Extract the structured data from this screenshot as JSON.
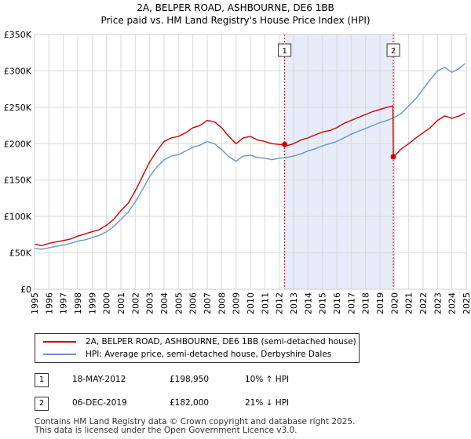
{
  "chart_data": {
    "type": "line",
    "title": "2A, BELPER ROAD, ASHBOURNE, DE6 1BB",
    "subtitle": "Price paid vs. HM Land Registry's House Price Index (HPI)",
    "xlabel": "",
    "ylabel": "",
    "xlim": [
      1995,
      2025
    ],
    "ylim": [
      0,
      350000
    ],
    "x_ticks": [
      "1995",
      "1996",
      "1997",
      "1998",
      "1999",
      "2000",
      "2001",
      "2002",
      "2003",
      "2004",
      "2005",
      "2006",
      "2007",
      "2008",
      "2009",
      "2010",
      "2011",
      "2012",
      "2013",
      "2014",
      "2015",
      "2016",
      "2017",
      "2018",
      "2019",
      "2020",
      "2021",
      "2022",
      "2023",
      "2024",
      "2025"
    ],
    "y_ticks": [
      {
        "value": 0,
        "label": "£0"
      },
      {
        "value": 50000,
        "label": "£50K"
      },
      {
        "value": 100000,
        "label": "£100K"
      },
      {
        "value": 150000,
        "label": "£150K"
      },
      {
        "value": 200000,
        "label": "£200K"
      },
      {
        "value": 250000,
        "label": "£250K"
      },
      {
        "value": 300000,
        "label": "£300K"
      },
      {
        "value": 350000,
        "label": "£350K"
      }
    ],
    "grid": true,
    "shaded_period": [
      2012.38,
      2019.93
    ],
    "series": [
      {
        "name": "2A, BELPER ROAD, ASHBOURNE, DE6 1BB (semi-detached house)",
        "color": "#cc0000",
        "x": [
          1995.0,
          1995.5,
          1996.0,
          1996.5,
          1997.0,
          1997.5,
          1998.0,
          1998.5,
          1999.0,
          1999.5,
          2000.0,
          2000.5,
          2001.0,
          2001.5,
          2002.0,
          2002.5,
          2003.0,
          2003.5,
          2004.0,
          2004.5,
          2005.0,
          2005.5,
          2006.0,
          2006.5,
          2007.0,
          2007.5,
          2008.0,
          2008.5,
          2009.0,
          2009.5,
          2010.0,
          2010.5,
          2011.0,
          2011.5,
          2012.0,
          2012.38,
          2012.5,
          2013.0,
          2013.5,
          2014.0,
          2014.5,
          2015.0,
          2015.5,
          2016.0,
          2016.5,
          2017.0,
          2017.5,
          2018.0,
          2018.5,
          2019.0,
          2019.5,
          2019.9,
          2019.93,
          2020.2,
          2020.5,
          2021.0,
          2021.5,
          2022.0,
          2022.5,
          2023.0,
          2023.5,
          2024.0,
          2024.5,
          2024.9
        ],
        "y": [
          62000,
          60000,
          63000,
          65000,
          67000,
          69000,
          73000,
          76000,
          79000,
          82000,
          88000,
          96000,
          108000,
          118000,
          135000,
          155000,
          175000,
          190000,
          203000,
          208000,
          210000,
          215000,
          222000,
          225000,
          232000,
          230000,
          222000,
          210000,
          200000,
          208000,
          210000,
          205000,
          203000,
          200000,
          199000,
          198950,
          197000,
          200000,
          205000,
          208000,
          212000,
          216000,
          218000,
          222000,
          228000,
          232000,
          236000,
          240000,
          244000,
          247000,
          250000,
          252000,
          182000,
          187000,
          193000,
          200000,
          208000,
          215000,
          222000,
          232000,
          238000,
          235000,
          238000,
          242000
        ]
      },
      {
        "name": "HPI: Average price, semi-detached house, Derbyshire Dales",
        "color": "#6a96c8",
        "x": [
          1995.0,
          1995.5,
          1996.0,
          1996.5,
          1997.0,
          1997.5,
          1998.0,
          1998.5,
          1999.0,
          1999.5,
          2000.0,
          2000.5,
          2001.0,
          2001.5,
          2002.0,
          2002.5,
          2003.0,
          2003.5,
          2004.0,
          2004.5,
          2005.0,
          2005.5,
          2006.0,
          2006.5,
          2007.0,
          2007.5,
          2008.0,
          2008.5,
          2009.0,
          2009.5,
          2010.0,
          2010.5,
          2011.0,
          2011.5,
          2012.0,
          2012.5,
          2013.0,
          2013.5,
          2014.0,
          2014.5,
          2015.0,
          2015.5,
          2016.0,
          2016.5,
          2017.0,
          2017.5,
          2018.0,
          2018.5,
          2019.0,
          2019.5,
          2020.0,
          2020.5,
          2021.0,
          2021.5,
          2022.0,
          2022.5,
          2023.0,
          2023.5,
          2024.0,
          2024.5,
          2024.9
        ],
        "y": [
          56000,
          55000,
          57000,
          59000,
          61000,
          63000,
          66000,
          68000,
          71000,
          74000,
          79000,
          86000,
          96000,
          106000,
          120000,
          137000,
          155000,
          168000,
          178000,
          183000,
          185000,
          190000,
          195000,
          198000,
          203000,
          200000,
          192000,
          182000,
          176000,
          183000,
          184000,
          181000,
          180000,
          178000,
          180000,
          181000,
          183000,
          186000,
          190000,
          193000,
          197000,
          200000,
          203000,
          208000,
          213000,
          217000,
          221000,
          225000,
          229000,
          232000,
          236000,
          242000,
          252000,
          262000,
          275000,
          288000,
          300000,
          305000,
          298000,
          303000,
          310000
        ]
      }
    ],
    "annotations": [
      {
        "id": "1",
        "x": 2012.38,
        "y": 198950
      },
      {
        "id": "2",
        "x": 2019.93,
        "y": 182000
      }
    ]
  },
  "legend": {
    "property_label": "2A, BELPER ROAD, ASHBOURNE, DE6 1BB (semi-detached house)",
    "hpi_label": "HPI: Average price, semi-detached house, Derbyshire Dales"
  },
  "transactions": [
    {
      "id": "1",
      "date": "18-MAY-2012",
      "price": "£198,950",
      "hpi": "10% ↑ HPI"
    },
    {
      "id": "2",
      "date": "06-DEC-2019",
      "price": "£182,000",
      "hpi": "21% ↓ HPI"
    }
  ],
  "footer": {
    "line1": "Contains HM Land Registry data © Crown copyright and database right 2025.",
    "line2": "This data is licensed under the Open Government Licence v3.0."
  }
}
